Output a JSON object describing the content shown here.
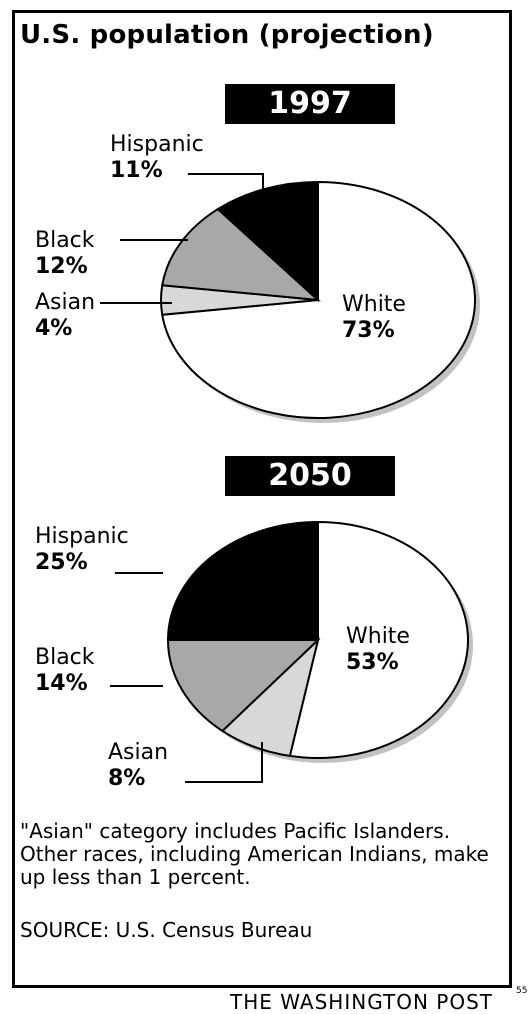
{
  "title": "U.S. population (projection)",
  "chart_data": [
    {
      "type": "pie",
      "title": "1997",
      "slices": [
        {
          "label": "White",
          "value": 73,
          "value_label": "73%",
          "color": "#ffffff"
        },
        {
          "label": "Asian",
          "value": 4,
          "value_label": "4%",
          "color": "#d8d8d8"
        },
        {
          "label": "Black",
          "value": 12,
          "value_label": "12%",
          "color": "#a8a8a8"
        },
        {
          "label": "Hispanic",
          "value": 11,
          "value_label": "11%",
          "color": "#000000"
        }
      ]
    },
    {
      "type": "pie",
      "title": "2050",
      "slices": [
        {
          "label": "White",
          "value": 53,
          "value_label": "53%",
          "color": "#ffffff"
        },
        {
          "label": "Asian",
          "value": 8,
          "value_label": "8%",
          "color": "#d8d8d8"
        },
        {
          "label": "Black",
          "value": 14,
          "value_label": "14%",
          "color": "#a8a8a8"
        },
        {
          "label": "Hispanic",
          "value": 25,
          "value_label": "25%",
          "color": "#000000"
        }
      ]
    }
  ],
  "note": "\"Asian\" category includes Pacific Islanders. Other races, including American Indians, make up less than 1 percent.",
  "source": "SOURCE: U.S. Census Bureau",
  "credit": "THE WASHINGTON POST",
  "page_number": "55"
}
